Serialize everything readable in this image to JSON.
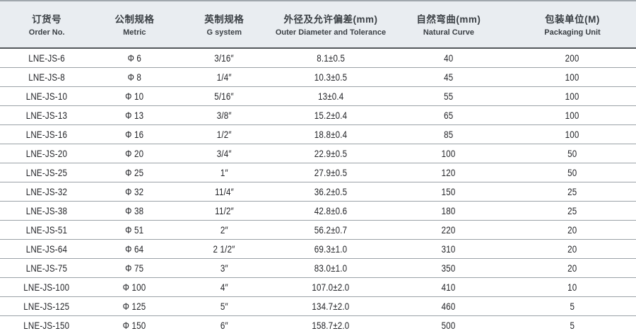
{
  "chart_data": {
    "type": "table",
    "title": "",
    "columns": [
      {
        "zh": "订货号",
        "en": "Order No."
      },
      {
        "zh": "公制规格",
        "en": "Metric"
      },
      {
        "zh": "英制规格",
        "en": "G system"
      },
      {
        "zh": "外径及允许偏差(mm)",
        "en": "Outer Diameter and Tolerance"
      },
      {
        "zh": "自然弯曲(mm)",
        "en": "Natural Curve"
      },
      {
        "zh": "包装单位(M)",
        "en": "Packaging Unit"
      }
    ],
    "rows": [
      [
        "LNE-JS-6",
        "Φ 6",
        "3/16″",
        "8.1±0.5",
        "40",
        "200"
      ],
      [
        "LNE-JS-8",
        "Φ 8",
        "1/4″",
        "10.3±0.5",
        "45",
        "100"
      ],
      [
        "LNE-JS-10",
        "Φ 10",
        "5/16″",
        "13±0.4",
        "55",
        "100"
      ],
      [
        "LNE-JS-13",
        "Φ 13",
        "3/8″",
        "15.2±0.4",
        "65",
        "100"
      ],
      [
        "LNE-JS-16",
        "Φ 16",
        "1/2″",
        "18.8±0.4",
        "85",
        "100"
      ],
      [
        "LNE-JS-20",
        "Φ 20",
        "3/4″",
        "22.9±0.5",
        "100",
        "50"
      ],
      [
        "LNE-JS-25",
        "Φ 25",
        "1″",
        "27.9±0.5",
        "120",
        "50"
      ],
      [
        "LNE-JS-32",
        "Φ 32",
        "11/4″",
        "36.2±0.5",
        "150",
        "25"
      ],
      [
        "LNE-JS-38",
        "Φ 38",
        "11/2″",
        "42.8±0.6",
        "180",
        "25"
      ],
      [
        "LNE-JS-51",
        "Φ 51",
        "2″",
        "56.2±0.7",
        "220",
        "20"
      ],
      [
        "LNE-JS-64",
        "Φ 64",
        "2 1/2″",
        "69.3±1.0",
        "310",
        "20"
      ],
      [
        "LNE-JS-75",
        "Φ 75",
        "3″",
        "83.0±1.0",
        "350",
        "20"
      ],
      [
        "LNE-JS-100",
        "Φ 100",
        "4″",
        "107.0±2.0",
        "410",
        "10"
      ],
      [
        "LNE-JS-125",
        "Φ 125",
        "5″",
        "134.7±2.0",
        "460",
        "5"
      ],
      [
        "LNE-JS-150",
        "Φ 150",
        "6″",
        "158.7±2.0",
        "500",
        "5"
      ]
    ],
    "layout": {
      "header_background": "#e9edf1",
      "header_bottom_border": "#54585c",
      "row_separator": "#9ba2a7",
      "text_color": "#232428",
      "grid": "horizontal-only"
    }
  }
}
